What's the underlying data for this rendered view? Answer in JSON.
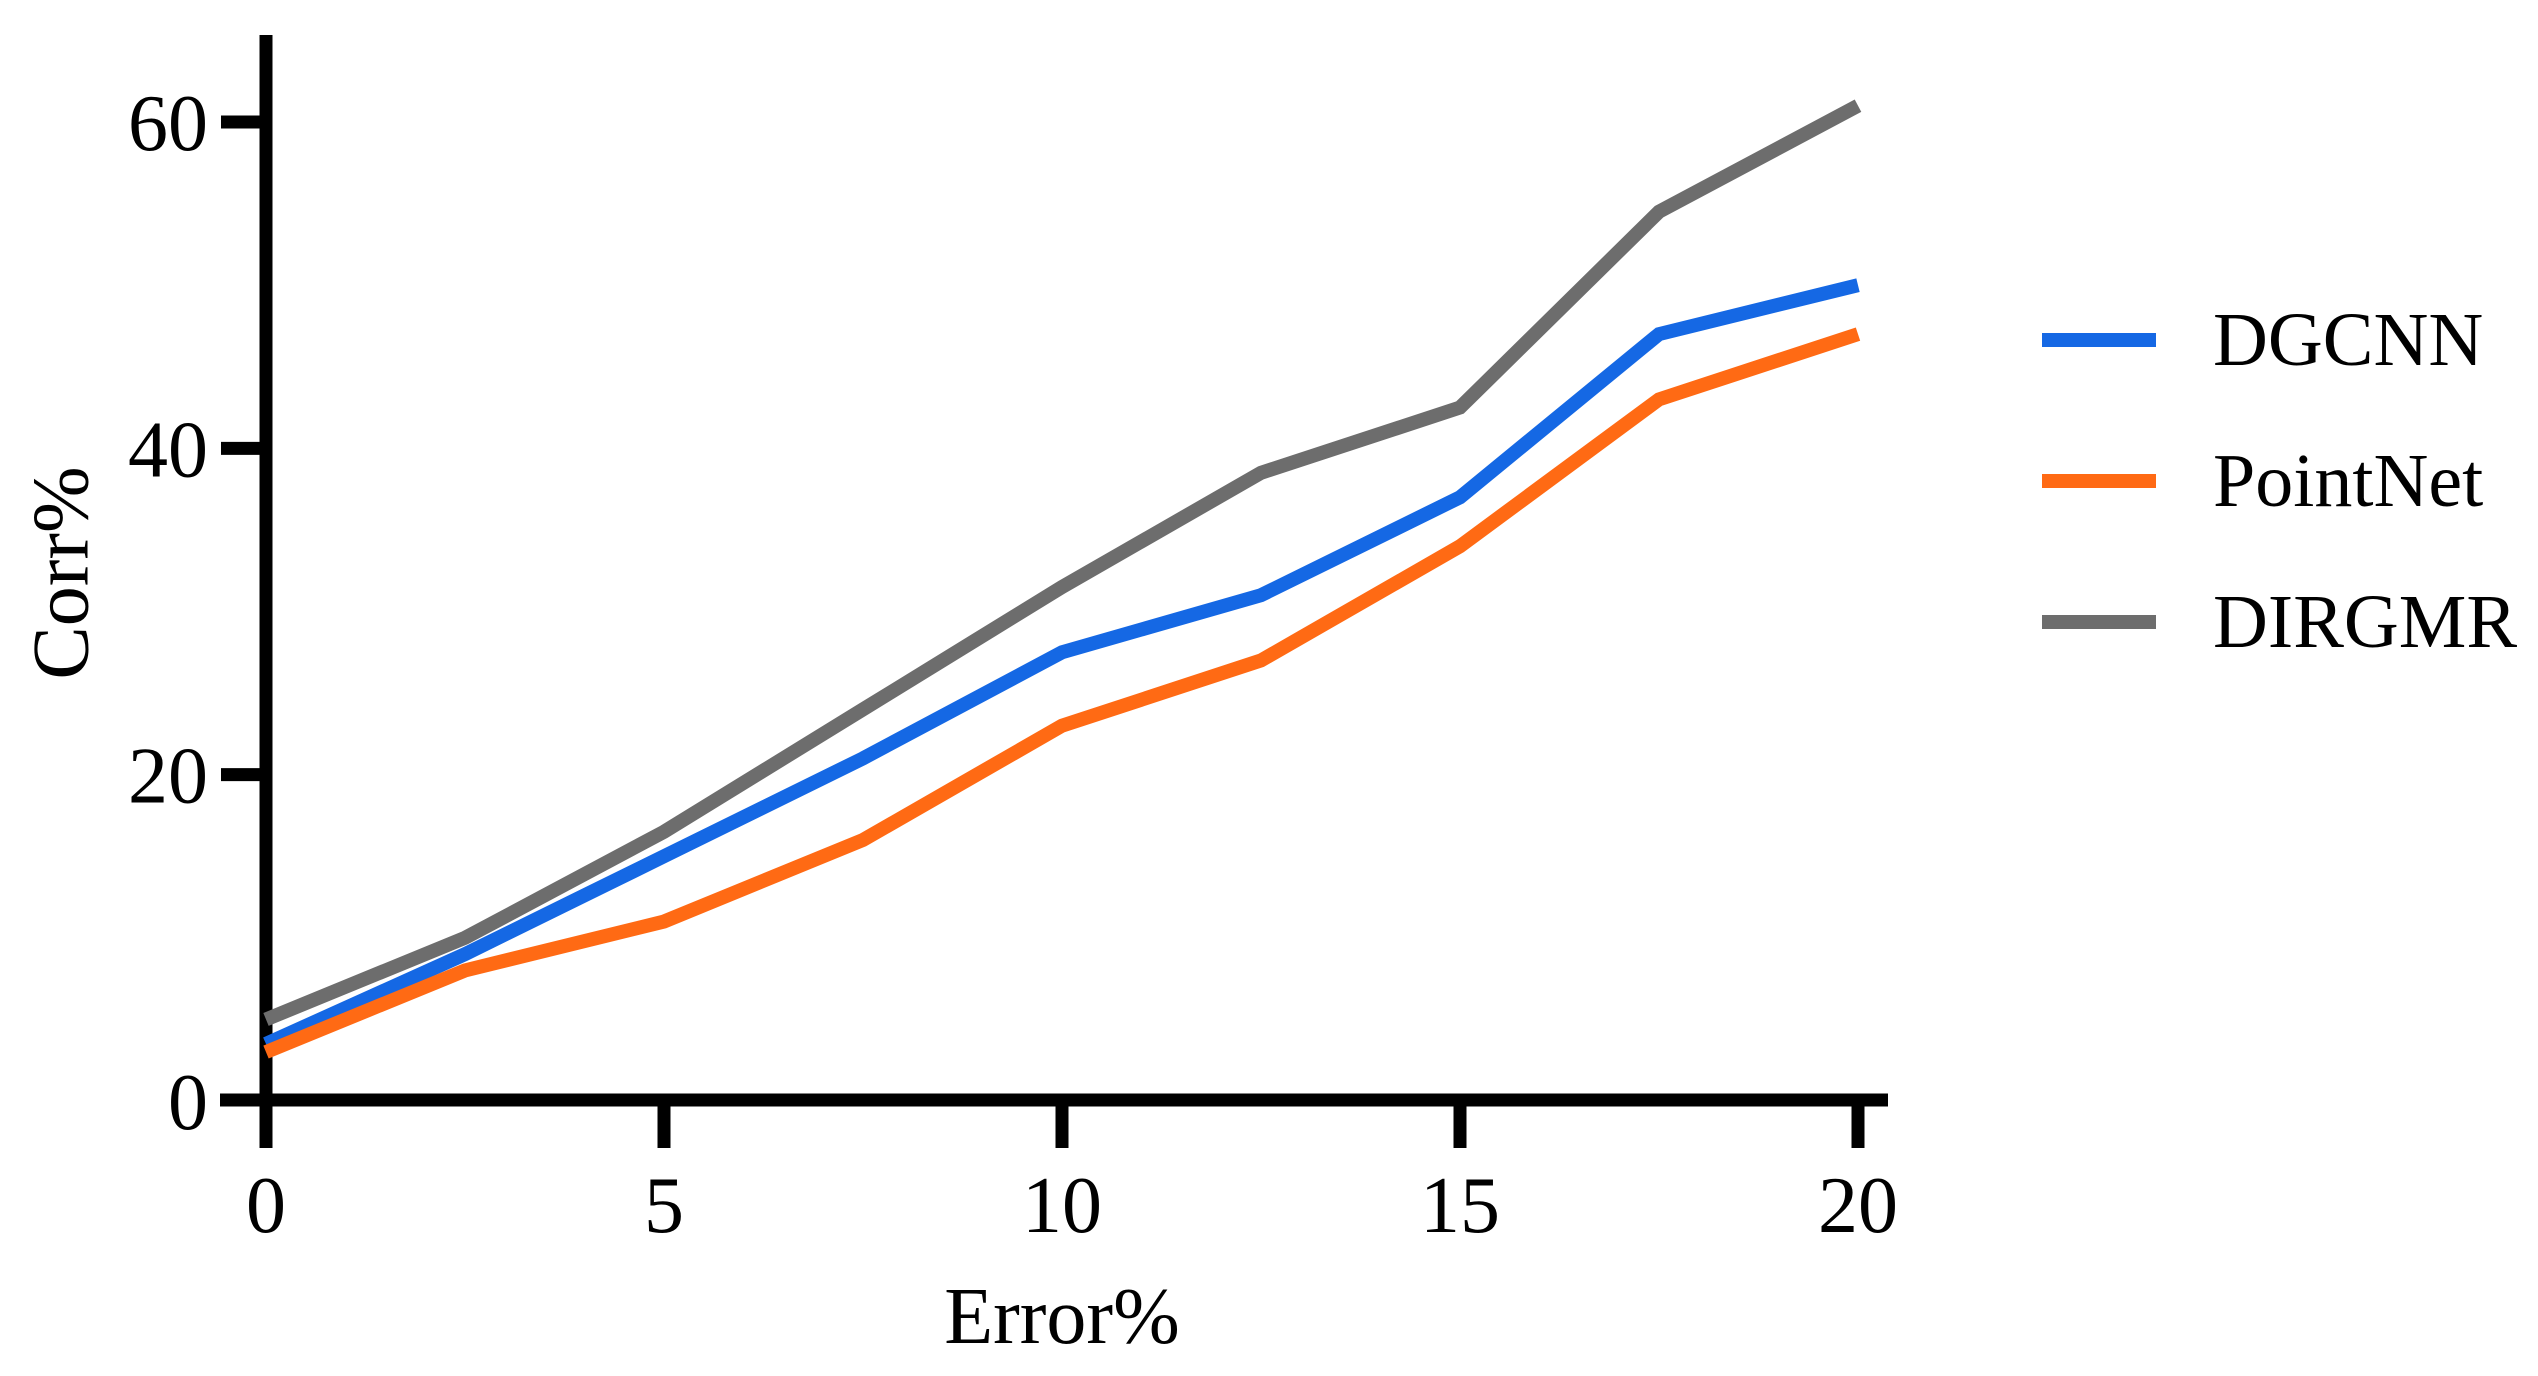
{
  "figure": {
    "background": "#ffffff",
    "axis_color": "#000000"
  },
  "chart_data": {
    "type": "line",
    "title": "",
    "xlabel": "Error%",
    "ylabel": "Corr%",
    "x": [
      0,
      2.5,
      5,
      7.5,
      10,
      12.5,
      15,
      17.5,
      20
    ],
    "x_ticks": [
      0,
      5,
      10,
      15,
      20
    ],
    "y_ticks": [
      0,
      20,
      40,
      60
    ],
    "xlim": [
      0,
      20
    ],
    "ylim": [
      0,
      60
    ],
    "grid": false,
    "legend_position": "right",
    "series": [
      {
        "name": "DGCNN",
        "color": "#1568E4",
        "values": [
          3.5,
          9,
          15,
          21,
          27.5,
          31,
          37,
          47,
          50
        ]
      },
      {
        "name": "PointNet",
        "color": "#FF6A14",
        "values": [
          3,
          8,
          11,
          16,
          23,
          27,
          34,
          43,
          47
        ]
      },
      {
        "name": "DIRGMR",
        "color": "#6D6D6D",
        "values": [
          5,
          10,
          16.5,
          24,
          31.5,
          38.5,
          42.5,
          54.5,
          61
        ]
      }
    ]
  }
}
